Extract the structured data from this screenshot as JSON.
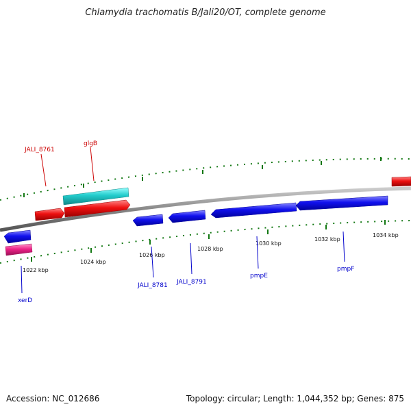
{
  "title": "Chlamydia trachomatis B/Jali20/OT, complete genome",
  "footer": {
    "accession": "Accession: NC_012686",
    "summary": "Topology: circular; Length: 1,044,352 bp; Genes: 875"
  },
  "colors": {
    "forward_gene": "#ee1111",
    "reverse_gene": "#1111ee",
    "rna_gene": "#22cccc",
    "pseudo_gene": "#ee2288",
    "backbone": "#888888",
    "ticks": "#117711",
    "forward_label": "#cc0000",
    "reverse_label": "#0000cc"
  },
  "scale": {
    "labels": [
      "1022 kbp",
      "1024 kbp",
      "1026 kbp",
      "1028 kbp",
      "1030 kbp",
      "1032 kbp",
      "1034 kbp"
    ]
  },
  "gene_labels": {
    "jali_8761": "JALI_8761",
    "glgb": "glgB",
    "xerd": "xerD",
    "jali_8781": "JALI_8781",
    "jali_8791": "JALI_8791",
    "pmpe": "pmpE",
    "pmpf": "pmpF"
  }
}
